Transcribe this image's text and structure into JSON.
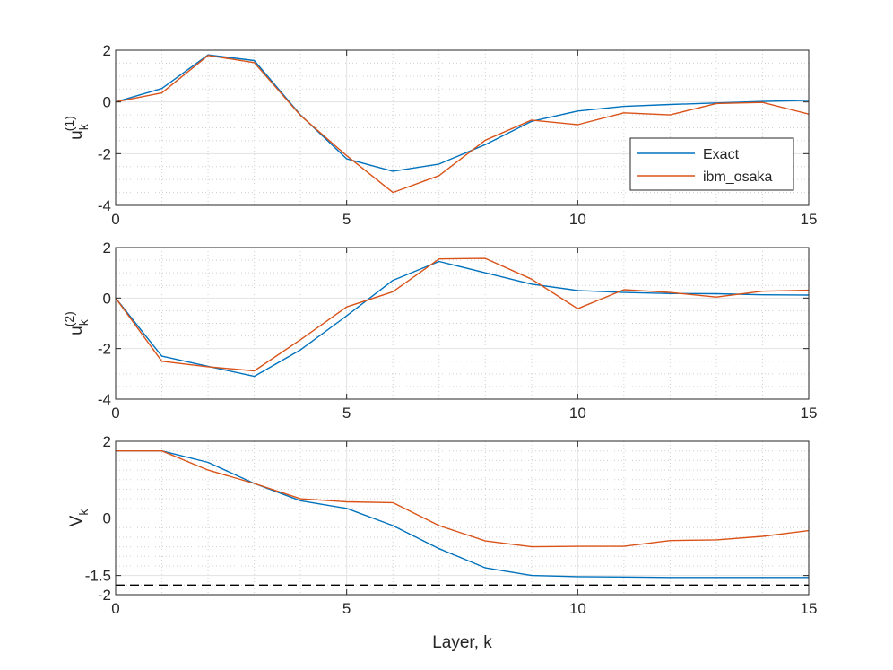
{
  "figure": {
    "xlabel": "Layer, k"
  },
  "chart_data": [
    {
      "type": "line",
      "ylabel": {
        "base": "u",
        "sub": "k",
        "sup": "(1)"
      },
      "xlim": [
        0,
        15
      ],
      "ylim": [
        -4,
        2
      ],
      "xticks": [
        0,
        5,
        10,
        15
      ],
      "yticks": [
        -4,
        -2,
        0,
        2
      ],
      "grid": true,
      "minor_grid": true,
      "legend": "inside-right",
      "x": [
        0,
        1,
        2,
        3,
        4,
        5,
        6,
        7,
        8,
        9,
        10,
        11,
        12,
        13,
        14,
        15
      ],
      "series": [
        {
          "name": "Exact",
          "color": "#0072BD",
          "values": [
            0,
            0.52,
            1.82,
            1.6,
            -0.5,
            -2.2,
            -2.68,
            -2.4,
            -1.65,
            -0.75,
            -0.35,
            -0.17,
            -0.1,
            -0.04,
            0.02,
            0.06
          ]
        },
        {
          "name": "ibm_osaka",
          "color": "#D95319",
          "values": [
            0,
            0.35,
            1.8,
            1.52,
            -0.52,
            -2.08,
            -3.5,
            -2.85,
            -1.48,
            -0.7,
            -0.88,
            -0.42,
            -0.5,
            -0.06,
            -0.02,
            -0.47
          ]
        }
      ]
    },
    {
      "type": "line",
      "ylabel": {
        "base": "u",
        "sub": "k",
        "sup": "(2)"
      },
      "xlim": [
        0,
        15
      ],
      "ylim": [
        -4,
        2
      ],
      "xticks": [
        0,
        5,
        10,
        15
      ],
      "yticks": [
        -4,
        -2,
        0,
        2
      ],
      "grid": true,
      "minor_grid": true,
      "x": [
        0,
        1,
        2,
        3,
        4,
        5,
        6,
        7,
        8,
        9,
        10,
        11,
        12,
        13,
        14,
        15
      ],
      "series": [
        {
          "color": "#0072BD",
          "values": [
            0,
            -2.3,
            -2.7,
            -3.1,
            -2.05,
            -0.7,
            0.7,
            1.45,
            1,
            0.55,
            0.3,
            0.22,
            0.18,
            0.17,
            0.13,
            0.12
          ]
        },
        {
          "color": "#D95319",
          "values": [
            0,
            -2.5,
            -2.72,
            -2.88,
            -1.65,
            -0.35,
            0.25,
            1.55,
            1.57,
            0.75,
            -0.42,
            0.33,
            0.22,
            0.04,
            0.27,
            0.31
          ]
        }
      ]
    },
    {
      "type": "line",
      "ylabel": {
        "base": "V",
        "sub": "k",
        "sup": ""
      },
      "xlim": [
        0,
        15
      ],
      "ylim": [
        -2,
        2
      ],
      "xticks": [
        0,
        5,
        10,
        15
      ],
      "yticks": [
        -2,
        -1.5,
        0,
        2
      ],
      "grid": true,
      "minor_grid": true,
      "x": [
        0,
        1,
        2,
        3,
        4,
        5,
        6,
        7,
        8,
        9,
        10,
        11,
        12,
        13,
        14,
        15
      ],
      "series": [
        {
          "color": "#0072BD",
          "values": [
            1.75,
            1.75,
            1.45,
            0.9,
            0.45,
            0.25,
            -0.2,
            -0.8,
            -1.3,
            -1.5,
            -1.53,
            -1.54,
            -1.55,
            -1.55,
            -1.55,
            -1.55
          ]
        },
        {
          "color": "#D95319",
          "values": [
            1.75,
            1.75,
            1.25,
            0.9,
            0.5,
            0.42,
            0.4,
            -0.2,
            -0.6,
            -0.75,
            -0.74,
            -0.74,
            -0.59,
            -0.57,
            -0.48,
            -0.33
          ]
        }
      ],
      "reference_line": {
        "y": -1.75,
        "style": "dashed",
        "color": "#000000"
      }
    }
  ]
}
